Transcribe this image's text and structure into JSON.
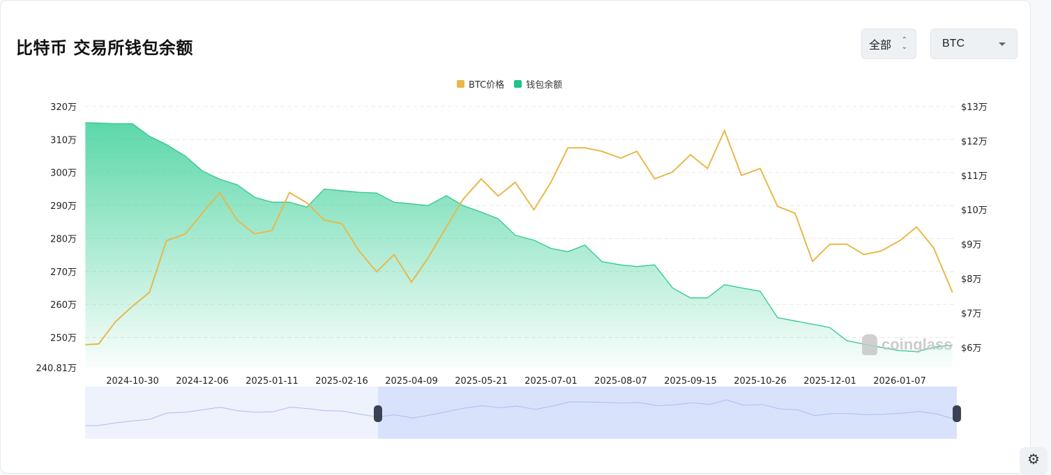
{
  "header": {
    "title": "比特币 交易所钱包余额"
  },
  "controls": {
    "range_select": "全部",
    "coin_select": "BTC"
  },
  "watermark": "coinglass",
  "colors": {
    "price": "#e8b84a",
    "balance": "#2ec98a",
    "navigator": "#a9bdf0"
  },
  "chart_data": {
    "type": "line",
    "legend": {
      "position": "top-center",
      "items": [
        "BTC价格",
        "钱包余额"
      ]
    },
    "grid": true,
    "x": [
      "2024-10-05",
      "2024-10-12",
      "2024-10-21",
      "2024-10-30",
      "2024-11-08",
      "2024-11-17",
      "2024-11-27",
      "2024-12-06",
      "2024-12-15",
      "2024-12-24",
      "2025-01-02",
      "2025-01-11",
      "2025-01-20",
      "2025-01-29",
      "2025-02-07",
      "2025-02-16",
      "2025-03-01",
      "2025-03-14",
      "2025-03-27",
      "2025-04-09",
      "2025-04-19",
      "2025-04-30",
      "2025-05-10",
      "2025-05-21",
      "2025-05-31",
      "2025-06-10",
      "2025-06-21",
      "2025-07-01",
      "2025-07-10",
      "2025-07-19",
      "2025-07-28",
      "2025-08-07",
      "2025-08-16",
      "2025-08-26",
      "2025-09-05",
      "2025-09-15",
      "2025-09-25",
      "2025-10-05",
      "2025-10-15",
      "2025-10-26",
      "2025-11-04",
      "2025-11-13",
      "2025-11-22",
      "2025-12-01",
      "2025-12-10",
      "2025-12-19",
      "2025-12-28",
      "2026-01-07",
      "2026-01-16",
      "2026-01-25",
      "2026-02-04"
    ],
    "x_ticks": [
      "2024-10-30",
      "2024-12-06",
      "2025-01-11",
      "2025-02-16",
      "2025-04-09",
      "2025-05-21",
      "2025-07-01",
      "2025-08-07",
      "2025-09-15",
      "2025-10-26",
      "2025-12-01",
      "2026-01-07"
    ],
    "y_left": {
      "unit": "万 BTC",
      "range": [
        240.81,
        320
      ],
      "ticks": [
        "320万",
        "310万",
        "300万",
        "290万",
        "280万",
        "270万",
        "260万",
        "250万",
        "240.81万"
      ],
      "tick_values": [
        320,
        310,
        300,
        290,
        280,
        270,
        260,
        250,
        240.81
      ]
    },
    "y_right": {
      "unit": "万 USD",
      "range": [
        5.41,
        13
      ],
      "ticks": [
        "$13万",
        "$12万",
        "$11万",
        "$10万",
        "$9万",
        "$8万",
        "$7万",
        "$6万"
      ],
      "tick_values": [
        13,
        12,
        11,
        10,
        9,
        8,
        7,
        6
      ]
    },
    "series": [
      {
        "name": "钱包余额",
        "type": "area",
        "axis": "left",
        "values": [
          315.1,
          315,
          314.8,
          314.8,
          311,
          308.5,
          305,
          300.5,
          298,
          296.3,
          292.5,
          291,
          291,
          289.5,
          295,
          294.5,
          294,
          293.8,
          291,
          290.5,
          290,
          293,
          290,
          288,
          286,
          281,
          279.5,
          277,
          276,
          278,
          273,
          272,
          271.5,
          272,
          265,
          262,
          262,
          266,
          265,
          264,
          256,
          255,
          254,
          253,
          249,
          248,
          247,
          246,
          245.7,
          247,
          247.7
        ]
      },
      {
        "name": "BTC价格",
        "type": "line",
        "axis": "right",
        "values": [
          6.08,
          6.1,
          6.75,
          7.2,
          7.6,
          9.1,
          9.3,
          9.9,
          10.5,
          9.7,
          9.3,
          9.4,
          10.5,
          10.2,
          9.7,
          9.6,
          8.8,
          8.2,
          8.7,
          7.9,
          8.6,
          9.5,
          10.3,
          10.9,
          10.4,
          10.8,
          10.0,
          10.8,
          11.8,
          11.8,
          11.7,
          11.5,
          11.7,
          10.9,
          11.1,
          11.6,
          11.2,
          12.3,
          11.0,
          11.2,
          10.1,
          9.9,
          8.5,
          9.0,
          9.0,
          8.7,
          8.8,
          9.1,
          9.5,
          8.9,
          7.6
        ]
      }
    ],
    "navigator": {
      "selected_range": [
        "2025-03-14",
        "2026-02-04"
      ]
    }
  }
}
